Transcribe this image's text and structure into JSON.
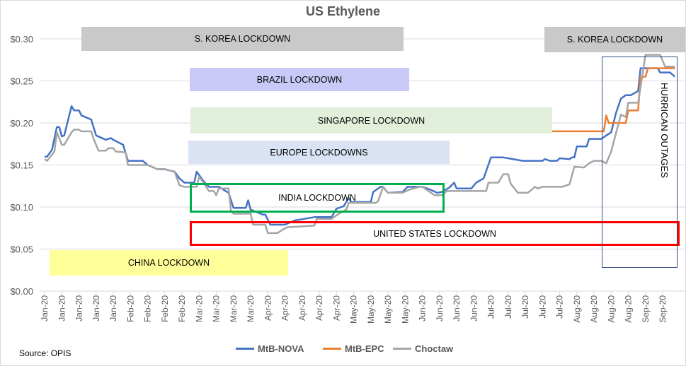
{
  "chart_data": {
    "type": "line",
    "title": "US Ethylene",
    "source": "Source: OPIS",
    "ylim": [
      0,
      0.3
    ],
    "yticks": [
      0,
      0.05,
      0.1,
      0.15,
      0.2,
      0.25,
      0.3
    ],
    "ytick_labels": [
      "$0.00",
      "$0.05",
      "$0.10",
      "$0.15",
      "$0.20",
      "$0.25",
      "$0.30"
    ],
    "grid": true,
    "legend_position": "bottom",
    "x_start": "2020-01-02",
    "x_tick_interval_days": 7,
    "xtick_labels": [
      "Jan-20",
      "Jan-20",
      "Jan-20",
      "Jan-20",
      "Jan-20",
      "Feb-20",
      "Feb-20",
      "Feb-20",
      "Feb-20",
      "Mar-20",
      "Mar-20",
      "Mar-20",
      "Mar-20",
      "Apr-20",
      "Apr-20",
      "Apr-20",
      "Apr-20",
      "Apr-20",
      "May-20",
      "May-20",
      "May-20",
      "May-20",
      "Jun-20",
      "Jun-20",
      "Jun-20",
      "Jun-20",
      "Jul-20",
      "Jul-20",
      "Jul-20",
      "Jul-20",
      "Jul-20",
      "Aug-20",
      "Aug-20",
      "Aug-20",
      "Aug-20",
      "Sep-20",
      "Sep-20"
    ],
    "series": [
      {
        "name": "MtB-NOVA",
        "color": "#4472c4",
        "points": [
          [
            "2020-01-02",
            0.16
          ],
          [
            "2020-01-03",
            0.16
          ],
          [
            "2020-01-05",
            0.168
          ],
          [
            "2020-01-07",
            0.195
          ],
          [
            "2020-01-08",
            0.195
          ],
          [
            "2020-01-09",
            0.184
          ],
          [
            "2020-01-10",
            0.185
          ],
          [
            "2020-01-13",
            0.22
          ],
          [
            "2020-01-14",
            0.215
          ],
          [
            "2020-01-16",
            0.215
          ],
          [
            "2020-01-17",
            0.209
          ],
          [
            "2020-01-21",
            0.204
          ],
          [
            "2020-01-23",
            0.185
          ],
          [
            "2020-01-27",
            0.18
          ],
          [
            "2020-01-29",
            0.182
          ],
          [
            "2020-01-30",
            0.18
          ],
          [
            "2020-02-03",
            0.174
          ],
          [
            "2020-02-05",
            0.155
          ],
          [
            "2020-02-11",
            0.155
          ],
          [
            "2020-02-13",
            0.15
          ],
          [
            "2020-02-17",
            0.145
          ],
          [
            "2020-02-20",
            0.145
          ],
          [
            "2020-02-24",
            0.142
          ],
          [
            "2020-02-26",
            0.134
          ],
          [
            "2020-02-28",
            0.129
          ],
          [
            "2020-03-03",
            0.129
          ],
          [
            "2020-03-04",
            0.142
          ],
          [
            "2020-03-07",
            0.13
          ],
          [
            "2020-03-09",
            0.124
          ],
          [
            "2020-03-13",
            0.124
          ],
          [
            "2020-03-17",
            0.117
          ],
          [
            "2020-03-19",
            0.099
          ],
          [
            "2020-03-24",
            0.099
          ],
          [
            "2020-03-25",
            0.108
          ],
          [
            "2020-03-26",
            0.097
          ],
          [
            "2020-03-31",
            0.091
          ],
          [
            "2020-04-01",
            0.091
          ],
          [
            "2020-04-03",
            0.079
          ],
          [
            "2020-04-09",
            0.079
          ],
          [
            "2020-04-13",
            0.084
          ],
          [
            "2020-04-17",
            0.086
          ],
          [
            "2020-04-21",
            0.088
          ],
          [
            "2020-04-28",
            0.088
          ],
          [
            "2020-04-30",
            0.098
          ],
          [
            "2020-05-03",
            0.101
          ],
          [
            "2020-05-05",
            0.111
          ],
          [
            "2020-05-06",
            0.106
          ],
          [
            "2020-05-14",
            0.106
          ],
          [
            "2020-05-15",
            0.118
          ],
          [
            "2020-05-18",
            0.124
          ],
          [
            "2020-05-19",
            0.124
          ],
          [
            "2020-05-21",
            0.117
          ],
          [
            "2020-05-27",
            0.118
          ],
          [
            "2020-05-29",
            0.124
          ],
          [
            "2020-06-04",
            0.124
          ],
          [
            "2020-06-07",
            0.121
          ],
          [
            "2020-06-10",
            0.117
          ],
          [
            "2020-06-12",
            0.118
          ],
          [
            "2020-06-15",
            0.123
          ],
          [
            "2020-06-17",
            0.129
          ],
          [
            "2020-06-18",
            0.122
          ],
          [
            "2020-06-24",
            0.122
          ],
          [
            "2020-06-26",
            0.129
          ],
          [
            "2020-06-29",
            0.134
          ],
          [
            "2020-07-02",
            0.159
          ],
          [
            "2020-07-07",
            0.159
          ],
          [
            "2020-07-09",
            0.158
          ],
          [
            "2020-07-15",
            0.155
          ],
          [
            "2020-07-23",
            0.155
          ],
          [
            "2020-07-24",
            0.157
          ],
          [
            "2020-07-26",
            0.155
          ],
          [
            "2020-07-29",
            0.155
          ],
          [
            "2020-07-30",
            0.158
          ],
          [
            "2020-08-03",
            0.157
          ],
          [
            "2020-08-04",
            0.159
          ],
          [
            "2020-08-05",
            0.159
          ],
          [
            "2020-08-06",
            0.172
          ],
          [
            "2020-08-10",
            0.172
          ],
          [
            "2020-08-11",
            0.181
          ],
          [
            "2020-08-16",
            0.181
          ],
          [
            "2020-08-18",
            0.185
          ],
          [
            "2020-08-20",
            0.189
          ],
          [
            "2020-08-22",
            0.212
          ],
          [
            "2020-08-24",
            0.229
          ],
          [
            "2020-08-26",
            0.233
          ],
          [
            "2020-08-28",
            0.233
          ],
          [
            "2020-08-31",
            0.238
          ],
          [
            "2020-09-01",
            0.265
          ],
          [
            "2020-09-08",
            0.265
          ],
          [
            "2020-09-09",
            0.26
          ],
          [
            "2020-09-13",
            0.26
          ],
          [
            "2020-09-15",
            0.255
          ]
        ]
      },
      {
        "name": "MtB-EPC",
        "color": "#ed7d31",
        "points": [
          [
            "2020-07-23",
            0.19
          ],
          [
            "2020-08-17",
            0.19
          ],
          [
            "2020-08-18",
            0.209
          ],
          [
            "2020-08-19",
            0.2
          ],
          [
            "2020-08-26",
            0.2
          ],
          [
            "2020-08-27",
            0.215
          ],
          [
            "2020-08-31",
            0.215
          ],
          [
            "2020-09-01",
            0.255
          ],
          [
            "2020-09-03",
            0.255
          ],
          [
            "2020-09-04",
            0.265
          ],
          [
            "2020-09-15",
            0.265
          ]
        ]
      },
      {
        "name": "Choctaw",
        "color": "#a5a5a5",
        "points": [
          [
            "2020-01-02",
            0.157
          ],
          [
            "2020-01-03",
            0.155
          ],
          [
            "2020-01-06",
            0.166
          ],
          [
            "2020-01-07",
            0.189
          ],
          [
            "2020-01-09",
            0.174
          ],
          [
            "2020-01-10",
            0.174
          ],
          [
            "2020-01-13",
            0.189
          ],
          [
            "2020-01-14",
            0.192
          ],
          [
            "2020-01-16",
            0.192
          ],
          [
            "2020-01-17",
            0.19
          ],
          [
            "2020-01-21",
            0.19
          ],
          [
            "2020-01-22",
            0.181
          ],
          [
            "2020-01-24",
            0.167
          ],
          [
            "2020-01-27",
            0.167
          ],
          [
            "2020-01-28",
            0.17
          ],
          [
            "2020-01-30",
            0.17
          ],
          [
            "2020-01-31",
            0.166
          ],
          [
            "2020-02-04",
            0.165
          ],
          [
            "2020-02-05",
            0.15
          ],
          [
            "2020-02-13",
            0.15
          ],
          [
            "2020-02-17",
            0.145
          ],
          [
            "2020-02-20",
            0.145
          ],
          [
            "2020-02-24",
            0.142
          ],
          [
            "2020-02-26",
            0.126
          ],
          [
            "2020-02-28",
            0.124
          ],
          [
            "2020-03-04",
            0.124
          ],
          [
            "2020-03-05",
            0.136
          ],
          [
            "2020-03-07",
            0.128
          ],
          [
            "2020-03-09",
            0.119
          ],
          [
            "2020-03-11",
            0.119
          ],
          [
            "2020-03-12",
            0.114
          ],
          [
            "2020-03-13",
            0.122
          ],
          [
            "2020-03-17",
            0.122
          ],
          [
            "2020-03-18",
            0.095
          ],
          [
            "2020-03-19",
            0.092
          ],
          [
            "2020-03-26",
            0.092
          ],
          [
            "2020-03-27",
            0.079
          ],
          [
            "2020-04-01",
            0.079
          ],
          [
            "2020-04-02",
            0.069
          ],
          [
            "2020-04-06",
            0.069
          ],
          [
            "2020-04-08",
            0.073
          ],
          [
            "2020-04-10",
            0.076
          ],
          [
            "2020-04-16",
            0.077
          ],
          [
            "2020-04-21",
            0.078
          ],
          [
            "2020-04-22",
            0.086
          ],
          [
            "2020-04-28",
            0.086
          ],
          [
            "2020-05-01",
            0.092
          ],
          [
            "2020-05-04",
            0.097
          ],
          [
            "2020-05-05",
            0.105
          ],
          [
            "2020-05-16",
            0.105
          ],
          [
            "2020-05-17",
            0.107
          ],
          [
            "2020-05-19",
            0.124
          ],
          [
            "2020-05-21",
            0.117
          ],
          [
            "2020-05-27",
            0.117
          ],
          [
            "2020-05-30",
            0.121
          ],
          [
            "2020-06-03",
            0.124
          ],
          [
            "2020-06-04",
            0.124
          ],
          [
            "2020-06-09",
            0.114
          ],
          [
            "2020-06-12",
            0.114
          ],
          [
            "2020-06-14",
            0.119
          ],
          [
            "2020-06-30",
            0.119
          ],
          [
            "2020-07-01",
            0.129
          ],
          [
            "2020-07-05",
            0.129
          ],
          [
            "2020-07-07",
            0.139
          ],
          [
            "2020-07-09",
            0.139
          ],
          [
            "2020-07-10",
            0.128
          ],
          [
            "2020-07-13",
            0.117
          ],
          [
            "2020-07-17",
            0.117
          ],
          [
            "2020-07-20",
            0.124
          ],
          [
            "2020-07-21",
            0.122
          ],
          [
            "2020-07-23",
            0.124
          ],
          [
            "2020-07-31",
            0.124
          ],
          [
            "2020-08-03",
            0.127
          ],
          [
            "2020-08-05",
            0.148
          ],
          [
            "2020-08-09",
            0.147
          ],
          [
            "2020-08-11",
            0.152
          ],
          [
            "2020-08-13",
            0.155
          ],
          [
            "2020-08-16",
            0.155
          ],
          [
            "2020-08-18",
            0.152
          ],
          [
            "2020-08-20",
            0.166
          ],
          [
            "2020-08-24",
            0.21
          ],
          [
            "2020-08-26",
            0.207
          ],
          [
            "2020-08-27",
            0.224
          ],
          [
            "2020-08-31",
            0.224
          ],
          [
            "2020-09-03",
            0.281
          ],
          [
            "2020-09-09",
            0.281
          ],
          [
            "2020-09-11",
            0.267
          ],
          [
            "2020-09-15",
            0.267
          ]
        ]
      }
    ],
    "annotations": [
      {
        "text": "S. KOREA LOCKDOWN",
        "style": "filled",
        "color": "#c9c9c9"
      },
      {
        "text": "S. KOREA LOCKDOWN",
        "style": "filled",
        "color": "#c9c9c9"
      },
      {
        "text": "BRAZIL LOCKDOWN",
        "style": "filled",
        "color": "#c9c9f7"
      },
      {
        "text": "SINGAPORE LOCKDOWN",
        "style": "filled",
        "color": "#e2efda"
      },
      {
        "text": "EUROPE LOCKDOWNS",
        "style": "filled",
        "color": "#dae3f3"
      },
      {
        "text": "INDIA LOCKDOWN",
        "style": "outline",
        "color": "#00b050"
      },
      {
        "text": "UNITED STATES LOCKDOWN",
        "style": "outline",
        "color": "#ff0000"
      },
      {
        "text": "CHINA LOCKDOWN",
        "style": "filled",
        "color": "#ffff99"
      },
      {
        "text": "HURRICAN OUTAGES",
        "style": "outline",
        "color": "#2f4a7f"
      }
    ]
  }
}
